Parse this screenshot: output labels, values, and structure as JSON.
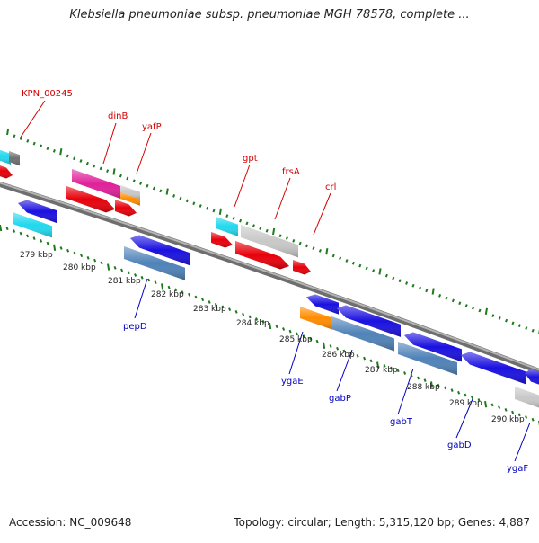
{
  "title": "Klebsiella pneumoniae subsp. pneumoniae MGH 78578, complete ...",
  "footer": {
    "accession": "Accession: NC_009648",
    "topology": "Topology: circular; Length: 5,315,120 bp; Genes: 4,887"
  },
  "colors": {
    "backbone": "#8a8a8a",
    "tick_green": "#1f7a1f",
    "label_forward": "#d40000",
    "label_reverse": "#0000c0",
    "red": "#e8000a",
    "blue": "#1a10e0",
    "cyan": "#22d8ee",
    "steelblue": "#4f82b8",
    "gray": "#c8c8c8",
    "magenta": "#e0209a",
    "orange": "#ff8c00",
    "darkgray": "#707070"
  },
  "ruler": [
    {
      "label": "279 kbp"
    },
    {
      "label": "280 kbp"
    },
    {
      "label": "281 kbp"
    },
    {
      "label": "282 kbp"
    },
    {
      "label": "283 kbp"
    },
    {
      "label": "284 kbp"
    },
    {
      "label": "285 kbp"
    },
    {
      "label": "286 kbp"
    },
    {
      "label": "287 kbp"
    },
    {
      "label": "288 kbp"
    },
    {
      "label": "289 kbp"
    },
    {
      "label": "290 kbp"
    }
  ],
  "gene_labels": {
    "forward": [
      "KPN_00245",
      "dinB",
      "yafP",
      "gpt",
      "frsA",
      "crl"
    ],
    "reverse": [
      "pepD",
      "ygaE",
      "gabP",
      "gabT",
      "gabD",
      "ygaF"
    ]
  }
}
